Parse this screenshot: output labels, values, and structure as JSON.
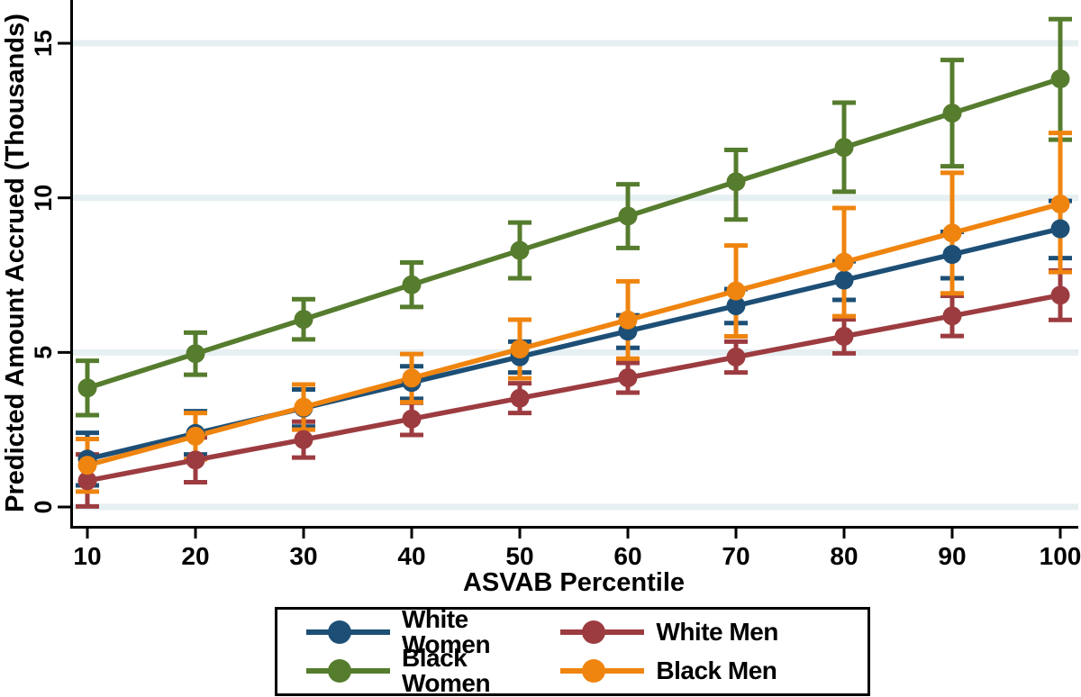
{
  "figure": {
    "background": "#ffffff",
    "axis_color": "#000000",
    "gridline_color": "#e6eff1",
    "text_color": "#000000"
  },
  "chart_data": {
    "type": "line",
    "title": "",
    "xlabel": "ASVAB Percentile",
    "ylabel": "Predicted Amount Accrued (Thousands)",
    "grid": "horizontal",
    "error_bars": true,
    "legend_position": "bottom-box",
    "x": [
      10,
      20,
      30,
      40,
      50,
      60,
      70,
      80,
      90,
      100
    ],
    "x_tick_labels": [
      "10",
      "20",
      "30",
      "40",
      "50",
      "60",
      "70",
      "80",
      "90",
      "100"
    ],
    "y_ticks": [
      0,
      5,
      10,
      15
    ],
    "y_tick_labels": [
      "0",
      "5",
      "10",
      "15"
    ],
    "xlim": [
      8.4,
      101.9
    ],
    "ylim": [
      0,
      16.45
    ],
    "series": [
      {
        "name": "White Women",
        "color": "#1d4f76",
        "values": [
          1.55,
          2.38,
          3.2,
          4.03,
          4.86,
          5.69,
          6.51,
          7.34,
          8.17,
          9.0
        ],
        "ci_low": [
          0.7,
          1.7,
          2.6,
          3.5,
          4.35,
          5.15,
          5.95,
          6.7,
          7.4,
          8.05
        ],
        "ci_high": [
          2.4,
          3.1,
          3.8,
          4.55,
          5.35,
          6.2,
          7.05,
          7.95,
          8.9,
          9.9
        ]
      },
      {
        "name": "White Men",
        "color": "#9c3c40",
        "values": [
          0.85,
          1.52,
          2.18,
          2.85,
          3.52,
          4.18,
          4.85,
          5.52,
          6.18,
          6.85
        ],
        "ci_low": [
          0.02,
          0.8,
          1.6,
          2.33,
          3.04,
          3.7,
          4.35,
          4.97,
          5.53,
          6.05
        ],
        "ci_high": [
          1.7,
          2.25,
          2.76,
          3.37,
          4.0,
          4.66,
          5.35,
          6.07,
          6.83,
          7.65
        ]
      },
      {
        "name": "Black Women",
        "color": "#567c2e",
        "values": [
          3.85,
          4.96,
          6.07,
          7.19,
          8.3,
          9.41,
          10.52,
          11.63,
          12.74,
          13.85
        ],
        "ci_low": [
          2.97,
          4.28,
          5.42,
          6.47,
          7.4,
          8.38,
          9.3,
          10.2,
          11.02,
          11.88
        ],
        "ci_high": [
          4.73,
          5.64,
          6.72,
          7.91,
          9.2,
          10.44,
          11.55,
          13.08,
          14.46,
          15.78
        ]
      },
      {
        "name": "Black Men",
        "color": "#ef840f",
        "values": [
          1.35,
          2.29,
          3.23,
          4.17,
          5.11,
          6.05,
          6.99,
          7.92,
          8.86,
          9.8
        ],
        "ci_low": [
          0.5,
          1.54,
          2.5,
          3.39,
          4.16,
          4.8,
          5.52,
          6.17,
          6.91,
          7.6
        ],
        "ci_high": [
          2.2,
          3.04,
          3.96,
          4.95,
          6.06,
          7.3,
          8.46,
          9.67,
          10.81,
          12.1
        ]
      }
    ]
  }
}
